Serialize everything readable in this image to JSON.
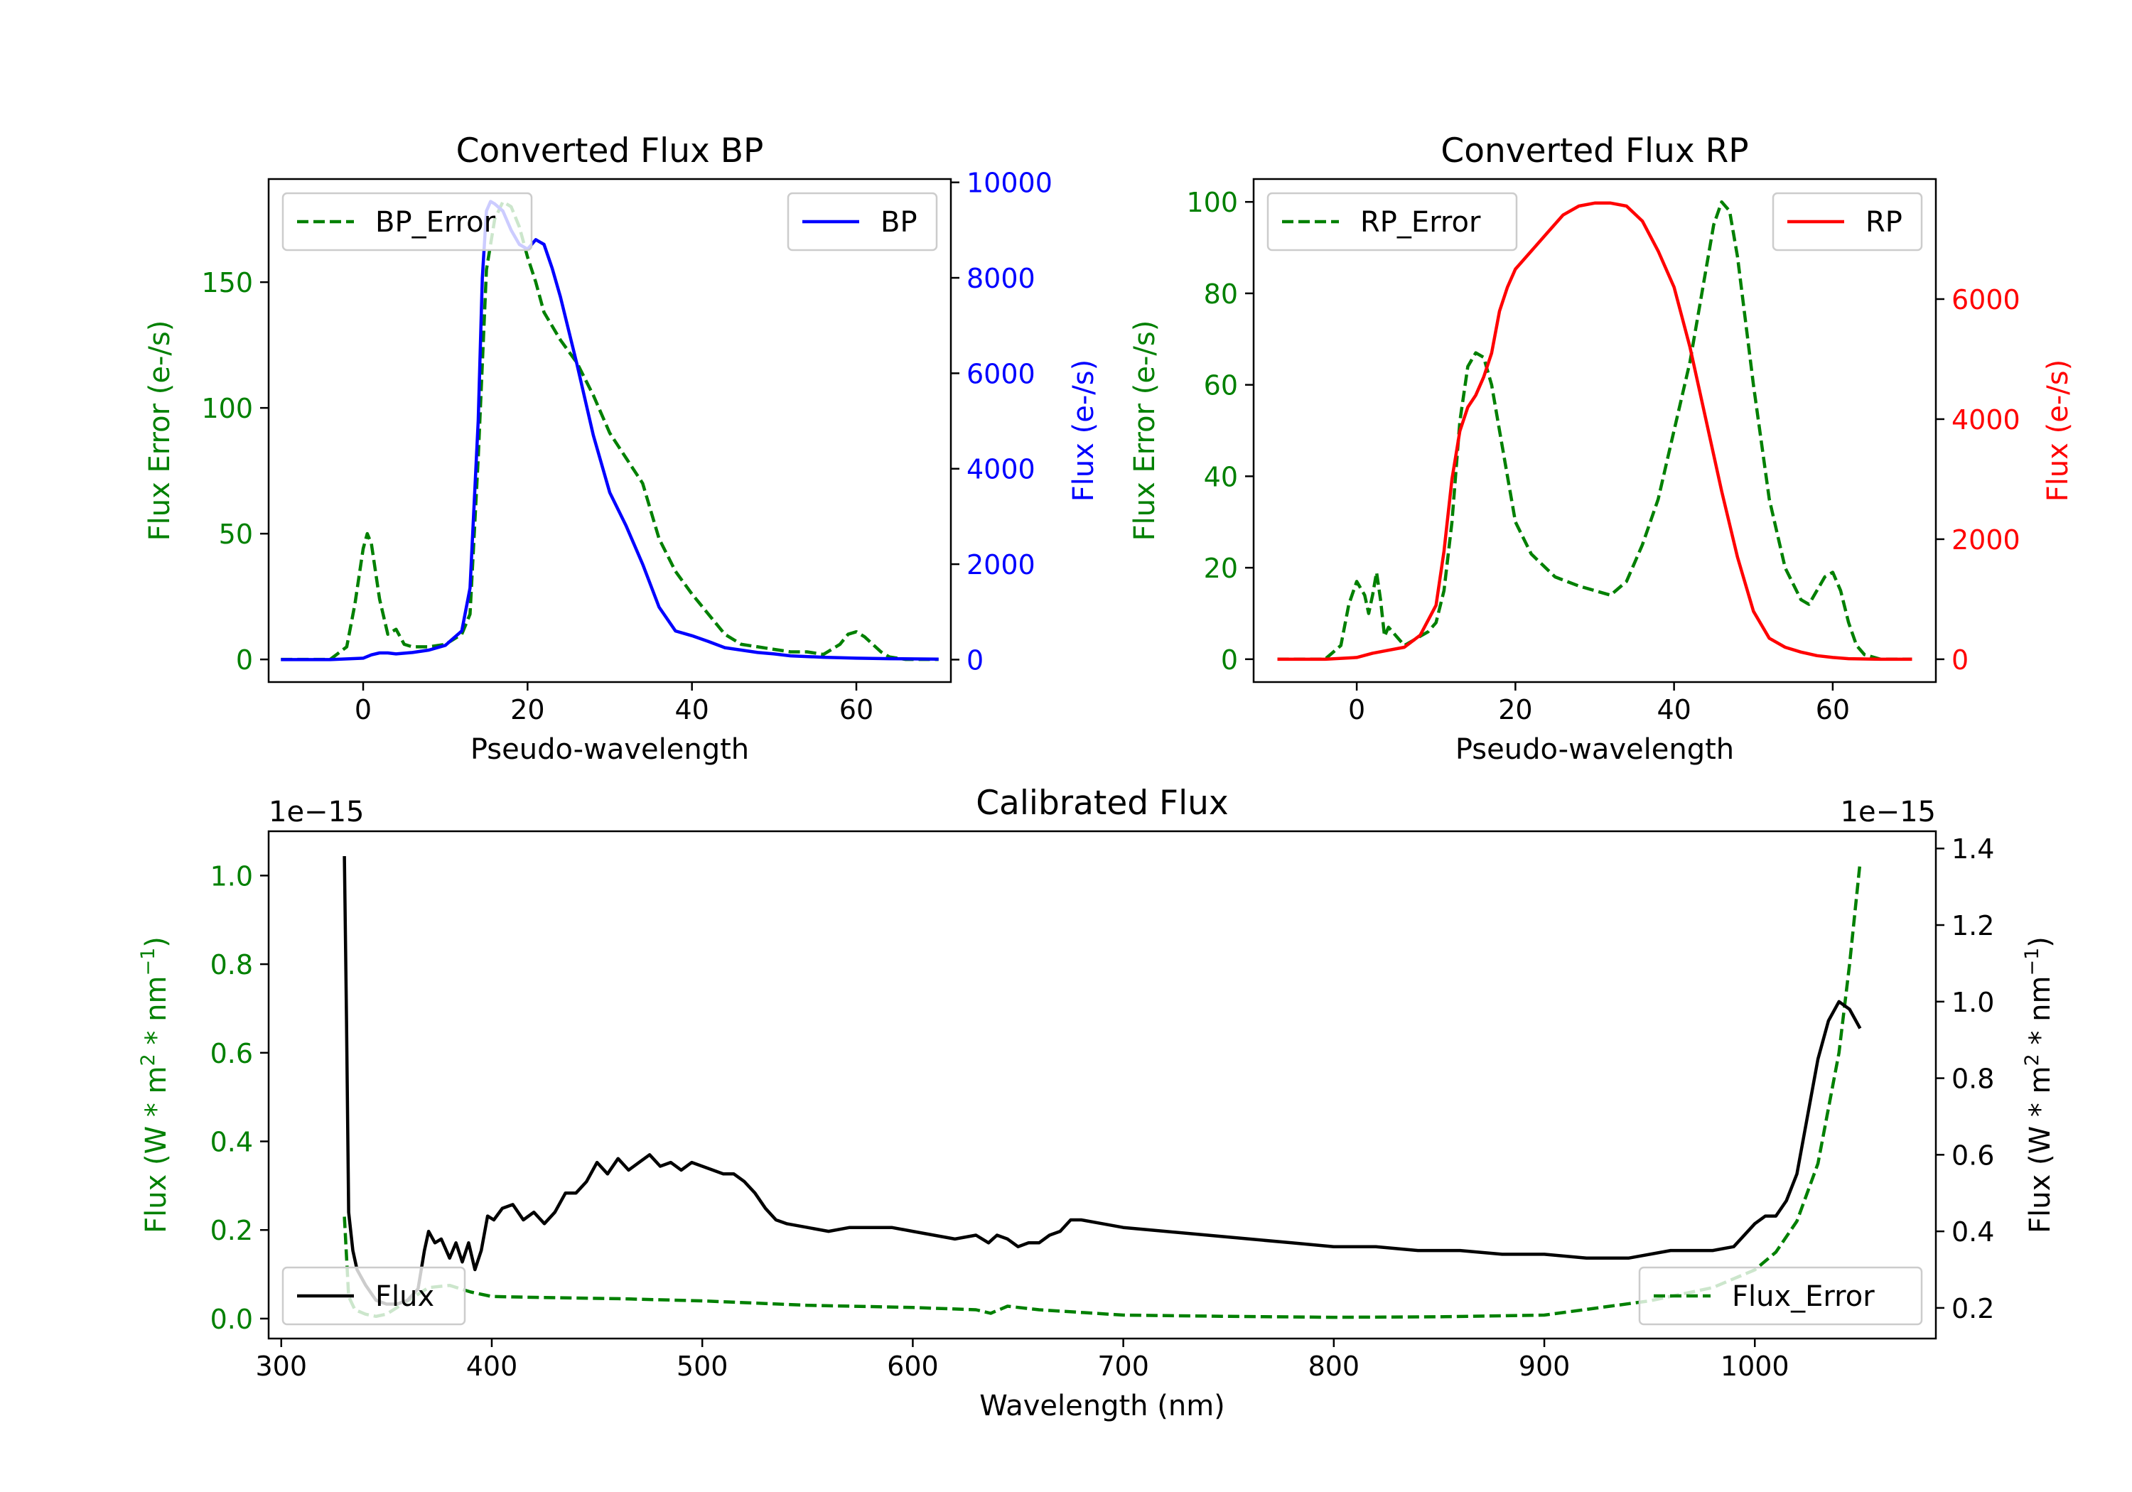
{
  "colors": {
    "green": "#008000",
    "blue": "#0000ff",
    "red": "#ff0000",
    "black": "#000000"
  },
  "chart_data": [
    {
      "id": "bp",
      "type": "line",
      "title": "Converted Flux BP",
      "xlabel": "Pseudo-wavelength",
      "xlim": [
        -11.5,
        71.5
      ],
      "xticks": [
        0,
        20,
        40,
        60
      ],
      "xtick_labels": [
        "0",
        "20",
        "40",
        "60"
      ],
      "left_axis": {
        "label": "Flux Error (e-/s)",
        "color": "green",
        "ylim": [
          -9,
          191
        ],
        "ticks": [
          0,
          50,
          100,
          150
        ],
        "tick_labels": [
          "0",
          "50",
          "100",
          "150"
        ]
      },
      "right_axis": {
        "label": "Flux (e-/s)",
        "color": "blue",
        "ylim": [
          -470,
          10070
        ],
        "ticks": [
          0,
          2000,
          4000,
          6000,
          8000,
          10000
        ],
        "tick_labels": [
          "0",
          "2000",
          "4000",
          "6000",
          "8000",
          "10000"
        ]
      },
      "series": [
        {
          "name": "BP_Error",
          "axis": "left",
          "color": "green",
          "style": "dashed",
          "x": [
            -10,
            -4,
            -2,
            -1,
            0,
            0.5,
            1,
            2,
            3,
            4,
            5,
            6,
            8,
            10,
            12,
            13,
            14,
            15,
            16,
            17,
            18,
            19,
            20,
            21,
            22,
            24,
            26,
            28,
            30,
            32,
            34,
            36,
            38,
            40,
            42,
            44,
            46,
            48,
            50,
            52,
            54,
            56,
            58,
            59,
            60,
            61,
            62,
            63,
            64,
            66,
            68,
            70
          ],
          "y": [
            0,
            0,
            5,
            22,
            44,
            50,
            46,
            24,
            10,
            12,
            6,
            5,
            5,
            6,
            10,
            18,
            80,
            155,
            175,
            182,
            180,
            172,
            160,
            150,
            138,
            127,
            118,
            105,
            90,
            80,
            70,
            48,
            35,
            26,
            18,
            10,
            6,
            5,
            4,
            3,
            3,
            2,
            6,
            10,
            11,
            9,
            6,
            3,
            1,
            0,
            0,
            0
          ]
        },
        {
          "name": "BP",
          "axis": "right",
          "color": "blue",
          "style": "solid",
          "x": [
            -10,
            -4,
            0,
            1,
            2,
            3,
            4,
            6,
            8,
            10,
            12,
            13,
            14,
            14.5,
            15,
            15.5,
            16,
            17,
            18,
            19,
            20,
            21,
            22,
            23,
            24,
            26,
            28,
            30,
            32,
            34,
            36,
            38,
            40,
            42,
            44,
            46,
            48,
            50,
            52,
            56,
            60,
            64,
            70
          ],
          "y": [
            0,
            0,
            30,
            100,
            140,
            140,
            120,
            150,
            200,
            300,
            600,
            1500,
            5000,
            8000,
            9400,
            9600,
            9550,
            9400,
            9000,
            8700,
            8600,
            8800,
            8700,
            8200,
            7600,
            6200,
            4700,
            3500,
            2800,
            2000,
            1100,
            600,
            500,
            380,
            250,
            200,
            150,
            120,
            80,
            50,
            30,
            20,
            10
          ]
        }
      ],
      "legends": [
        {
          "position": "upper-left",
          "label": "BP_Error",
          "color": "green",
          "style": "dashed"
        },
        {
          "position": "upper-right",
          "label": "BP",
          "color": "blue",
          "style": "solid"
        }
      ]
    },
    {
      "id": "rp",
      "type": "line",
      "title": "Converted Flux RP",
      "xlabel": "Pseudo-wavelength",
      "xlim": [
        -13,
        73
      ],
      "xticks": [
        0,
        20,
        40,
        60
      ],
      "xtick_labels": [
        "0",
        "20",
        "40",
        "60"
      ],
      "left_axis": {
        "label": "Flux Error (e-/s)",
        "color": "green",
        "ylim": [
          -5,
          105
        ],
        "ticks": [
          0,
          20,
          40,
          60,
          80,
          100
        ],
        "tick_labels": [
          "0",
          "20",
          "40",
          "60",
          "80",
          "100"
        ]
      },
      "right_axis": {
        "label": "Flux (e-/s)",
        "color": "red",
        "ylim": [
          -380,
          8000
        ],
        "ticks": [
          0,
          2000,
          4000,
          6000
        ],
        "tick_labels": [
          "0",
          "2000",
          "4000",
          "6000"
        ]
      },
      "series": [
        {
          "name": "RP_Error",
          "axis": "left",
          "color": "green",
          "style": "dashed",
          "x": [
            -10,
            -4,
            -2,
            -1,
            0,
            1,
            1.5,
            2,
            2.5,
            3,
            3.5,
            4,
            5,
            6,
            7,
            8,
            9,
            10,
            11,
            12,
            13,
            14,
            15,
            16,
            17,
            18,
            19,
            20,
            22,
            25,
            28,
            30,
            32,
            34,
            36,
            38,
            40,
            42,
            44,
            45,
            46,
            47,
            48,
            50,
            52,
            54,
            56,
            57,
            58,
            59,
            60,
            61,
            62,
            63,
            64,
            66,
            70
          ],
          "y": [
            0,
            0,
            3,
            12,
            17,
            14,
            10,
            14,
            19,
            13,
            5,
            7,
            5,
            3,
            4,
            5,
            6,
            8,
            15,
            30,
            52,
            64,
            67,
            66,
            60,
            50,
            40,
            30,
            23,
            18,
            16,
            15,
            14,
            17,
            25,
            35,
            50,
            65,
            85,
            95,
            100,
            98,
            88,
            60,
            35,
            20,
            13,
            12,
            15,
            18,
            19,
            15,
            8,
            3,
            1,
            0,
            0
          ]
        },
        {
          "name": "RP",
          "axis": "right",
          "color": "red",
          "style": "solid",
          "x": [
            -10,
            -4,
            0,
            2,
            4,
            6,
            8,
            10,
            11,
            12,
            13,
            14,
            15,
            16,
            17,
            18,
            19,
            20,
            22,
            24,
            26,
            28,
            30,
            32,
            34,
            36,
            38,
            40,
            42,
            44,
            46,
            48,
            50,
            52,
            54,
            56,
            58,
            60,
            62,
            64,
            66,
            70
          ],
          "y": [
            0,
            0,
            30,
            100,
            150,
            200,
            400,
            900,
            1800,
            3000,
            3800,
            4200,
            4400,
            4700,
            5100,
            5800,
            6200,
            6500,
            6800,
            7100,
            7400,
            7550,
            7600,
            7600,
            7550,
            7300,
            6800,
            6200,
            5200,
            4000,
            2800,
            1700,
            800,
            350,
            200,
            120,
            60,
            30,
            10,
            5,
            0,
            0
          ]
        }
      ],
      "legends": [
        {
          "position": "upper-left",
          "label": "RP_Error",
          "color": "green",
          "style": "dashed"
        },
        {
          "position": "upper-right",
          "label": "RP",
          "color": "red",
          "style": "solid"
        }
      ]
    },
    {
      "id": "cal",
      "type": "line",
      "title": "Calibrated Flux",
      "xlabel": "Wavelength (nm)",
      "xlim": [
        294,
        1086
      ],
      "xticks": [
        300,
        400,
        500,
        600,
        700,
        800,
        900,
        1000
      ],
      "xtick_labels": [
        "300",
        "400",
        "500",
        "600",
        "700",
        "800",
        "900",
        "1000"
      ],
      "left_axis": {
        "label": "Flux (W * m$^{2}$ * nm$^{-1}$)",
        "color": "green",
        "label_parts": [
          "Flux (W * m",
          "2",
          " * nm",
          "−1",
          ")"
        ],
        "offset_text": "1e−15",
        "ylim": [
          -0.045,
          1.1
        ],
        "ticks": [
          0.0,
          0.2,
          0.4,
          0.6,
          0.8,
          1.0
        ],
        "tick_labels": [
          "0.0",
          "0.2",
          "0.4",
          "0.6",
          "0.8",
          "1.0"
        ]
      },
      "right_axis": {
        "label": "Flux (W * m$^{2}$ * nm$^{-1}$)",
        "color": "black",
        "label_parts": [
          "Flux (W * m",
          "2",
          " * nm",
          "−1",
          ")"
        ],
        "offset_text": "1e−15",
        "ylim": [
          0.12,
          1.445
        ],
        "ticks": [
          0.2,
          0.4,
          0.6,
          0.8,
          1.0,
          1.2,
          1.4
        ],
        "tick_labels": [
          "0.2",
          "0.4",
          "0.6",
          "0.8",
          "1.0",
          "1.2",
          "1.4"
        ]
      },
      "series": [
        {
          "name": "Flux_Error",
          "axis": "left",
          "color": "green",
          "style": "dashed",
          "x": [
            330,
            332,
            335,
            340,
            345,
            350,
            360,
            370,
            380,
            390,
            400,
            420,
            460,
            500,
            550,
            600,
            630,
            637,
            645,
            660,
            700,
            750,
            800,
            850,
            900,
            950,
            980,
            1000,
            1010,
            1020,
            1030,
            1040,
            1045,
            1050
          ],
          "y": [
            0.23,
            0.05,
            0.02,
            0.01,
            0.005,
            0.01,
            0.04,
            0.07,
            0.075,
            0.06,
            0.05,
            0.048,
            0.045,
            0.04,
            0.03,
            0.025,
            0.02,
            0.012,
            0.028,
            0.02,
            0.008,
            0.005,
            0.003,
            0.004,
            0.008,
            0.04,
            0.07,
            0.11,
            0.15,
            0.22,
            0.35,
            0.6,
            0.8,
            1.03
          ]
        },
        {
          "name": "Flux",
          "axis": "right",
          "color": "black",
          "style": "solid",
          "x": [
            330,
            331,
            332,
            334,
            336,
            340,
            345,
            350,
            355,
            360,
            365,
            368,
            370,
            373,
            376,
            380,
            383,
            386,
            389,
            392,
            395,
            398,
            401,
            405,
            410,
            415,
            420,
            425,
            430,
            435,
            440,
            445,
            450,
            455,
            460,
            465,
            470,
            475,
            480,
            485,
            490,
            495,
            500,
            505,
            510,
            515,
            520,
            525,
            530,
            535,
            540,
            550,
            560,
            570,
            580,
            590,
            600,
            610,
            620,
            630,
            636,
            640,
            645,
            650,
            655,
            660,
            665,
            670,
            675,
            680,
            690,
            700,
            720,
            740,
            760,
            780,
            800,
            820,
            840,
            860,
            880,
            900,
            920,
            940,
            960,
            980,
            990,
            1000,
            1005,
            1010,
            1015,
            1020,
            1025,
            1030,
            1035,
            1040,
            1045,
            1050
          ],
          "y": [
            1.38,
            0.95,
            0.45,
            0.35,
            0.3,
            0.26,
            0.22,
            0.21,
            0.21,
            0.22,
            0.25,
            0.35,
            0.4,
            0.37,
            0.38,
            0.33,
            0.37,
            0.32,
            0.37,
            0.3,
            0.35,
            0.44,
            0.43,
            0.46,
            0.47,
            0.43,
            0.45,
            0.42,
            0.45,
            0.5,
            0.5,
            0.53,
            0.58,
            0.55,
            0.59,
            0.56,
            0.58,
            0.6,
            0.57,
            0.58,
            0.56,
            0.58,
            0.57,
            0.56,
            0.55,
            0.55,
            0.53,
            0.5,
            0.46,
            0.43,
            0.42,
            0.41,
            0.4,
            0.41,
            0.41,
            0.41,
            0.4,
            0.39,
            0.38,
            0.39,
            0.37,
            0.39,
            0.38,
            0.36,
            0.37,
            0.37,
            0.39,
            0.4,
            0.43,
            0.43,
            0.42,
            0.41,
            0.4,
            0.39,
            0.38,
            0.37,
            0.36,
            0.36,
            0.35,
            0.35,
            0.34,
            0.34,
            0.33,
            0.33,
            0.35,
            0.35,
            0.36,
            0.42,
            0.44,
            0.44,
            0.48,
            0.55,
            0.7,
            0.85,
            0.95,
            1.0,
            0.98,
            0.93
          ]
        }
      ],
      "legends": [
        {
          "position": "lower-left",
          "label": "Flux",
          "color": "black",
          "style": "solid"
        },
        {
          "position": "lower-right",
          "label": "Flux_Error",
          "color": "green",
          "style": "dashed"
        }
      ]
    }
  ]
}
